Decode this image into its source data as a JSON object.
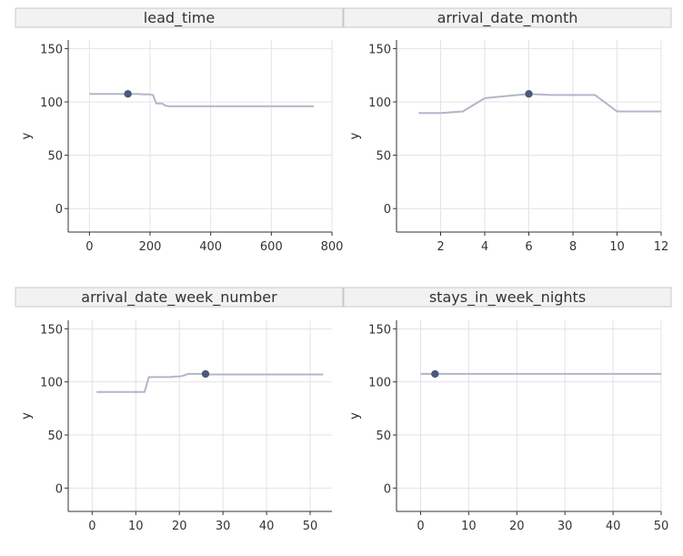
{
  "chart_data": [
    {
      "type": "line",
      "title": "lead_time",
      "ylabel": "y",
      "xlim": [
        -70,
        800
      ],
      "ylim": [
        -22,
        158
      ],
      "xticks": [
        0,
        200,
        400,
        600,
        800
      ],
      "yticks": [
        0,
        50,
        100,
        150
      ],
      "grid": true,
      "series": [
        {
          "x": [
            0,
            20,
            40,
            60,
            80,
            100,
            120,
            140,
            160,
            180,
            200,
            210,
            220,
            240,
            250,
            260,
            280,
            300,
            400,
            500,
            600,
            700,
            740
          ],
          "y": [
            107.5,
            107.5,
            107.5,
            107.5,
            107.5,
            107.5,
            107.5,
            107.5,
            107.5,
            107.0,
            107.0,
            106.5,
            98.5,
            98.5,
            96.5,
            96.0,
            96.0,
            96.0,
            96.0,
            96.0,
            96.0,
            96.0,
            96.0
          ]
        }
      ],
      "highlight_point": {
        "x": 127,
        "y": 107.5
      }
    },
    {
      "type": "line",
      "title": "arrival_date_month",
      "ylabel": "y",
      "xlim": [
        0,
        12
      ],
      "ylim": [
        -22,
        158
      ],
      "xticks": [
        2,
        4,
        6,
        8,
        10,
        12
      ],
      "yticks": [
        0,
        50,
        100,
        150
      ],
      "grid": true,
      "series": [
        {
          "x": [
            1,
            2,
            3,
            4,
            5,
            6,
            7,
            8,
            9,
            10,
            11,
            12
          ],
          "y": [
            89.5,
            89.5,
            91.0,
            103.5,
            105.5,
            107.5,
            106.5,
            106.5,
            106.5,
            91.0,
            91.0,
            91.0
          ]
        }
      ],
      "highlight_point": {
        "x": 6,
        "y": 107.5
      }
    },
    {
      "type": "line",
      "title": "arrival_date_week_number",
      "ylabel": "y",
      "xlim": [
        -5.5,
        55
      ],
      "ylim": [
        -22,
        158
      ],
      "xticks": [
        0,
        10,
        20,
        30,
        40,
        50
      ],
      "yticks": [
        0,
        50,
        100,
        150
      ],
      "grid": true,
      "series": [
        {
          "x": [
            1,
            5,
            10,
            12,
            13,
            15,
            18,
            19,
            20,
            21,
            22,
            25,
            26,
            30,
            40,
            50,
            53
          ],
          "y": [
            90.5,
            90.5,
            90.5,
            90.5,
            104.5,
            104.5,
            104.5,
            105.0,
            105.0,
            106.0,
            107.5,
            107.5,
            107.0,
            107.0,
            107.0,
            107.0,
            107.0
          ]
        }
      ],
      "highlight_point": {
        "x": 26,
        "y": 107.5
      }
    },
    {
      "type": "line",
      "title": "stays_in_week_nights",
      "ylabel": "y",
      "xlim": [
        -5,
        50
      ],
      "ylim": [
        -22,
        158
      ],
      "xticks": [
        0,
        10,
        20,
        30,
        40,
        50
      ],
      "yticks": [
        0,
        50,
        100,
        150
      ],
      "grid": true,
      "series": [
        {
          "x": [
            0,
            1,
            2,
            3,
            5,
            10,
            20,
            30,
            40,
            50
          ],
          "y": [
            107.5,
            107.5,
            107.5,
            107.5,
            107.5,
            107.5,
            107.5,
            107.5,
            107.5,
            107.5
          ]
        }
      ],
      "highlight_point": {
        "x": 3,
        "y": 107.5
      }
    }
  ],
  "colors": {
    "line": "#b0b7c8",
    "point": "#4a5a7a",
    "grid": "#e3e3e3",
    "strip_fill": "#f2f2f2",
    "strip_border": "#c8c8c8",
    "axis": "#333333"
  }
}
